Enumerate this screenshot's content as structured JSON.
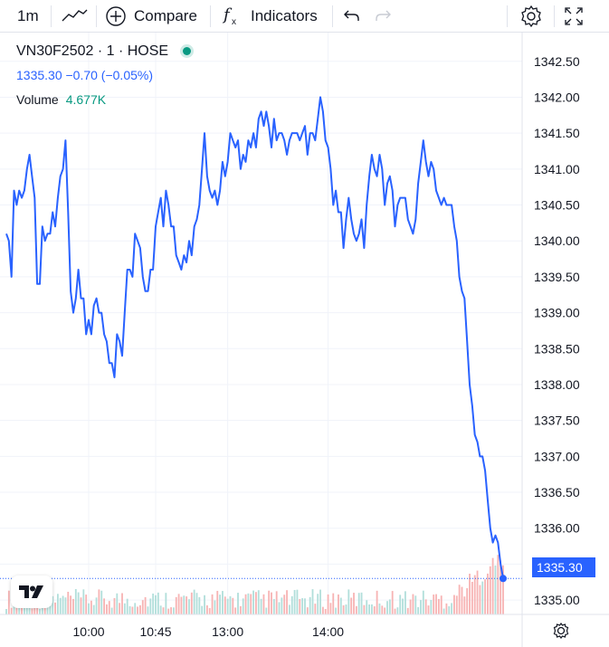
{
  "toolbar": {
    "interval": "1m",
    "compare_label": "Compare",
    "indicators_label": "Indicators",
    "icons": [
      "line-chart-icon",
      "plus-circle-icon",
      "fx-icon",
      "undo-icon",
      "redo-icon",
      "settings-icon",
      "fullscreen-icon"
    ]
  },
  "legend": {
    "symbol": "VN30F2502 · 1 · HOSE",
    "ohlc": "1335.30  −0.70 (−0.05%)",
    "volume_label": "Volume",
    "volume_value": "4.677K"
  },
  "colors": {
    "line": "#2962ff",
    "volume_up": "#b2dfdb",
    "volume_down": "#f7b4b4",
    "status_dot": "#089981"
  },
  "chart_data": {
    "type": "line",
    "title": "",
    "xlabel": "",
    "ylabel": "",
    "ylim": [
      1334.8,
      1342.9
    ],
    "yticks": [
      1342.5,
      1342.0,
      1341.5,
      1341.0,
      1340.5,
      1340.0,
      1339.5,
      1339.0,
      1338.5,
      1338.0,
      1337.5,
      1337.0,
      1336.5,
      1336.0,
      1335.5,
      1335.0
    ],
    "ytick_labels": [
      "1342.50",
      "1342.00",
      "1341.50",
      "1341.00",
      "1340.50",
      "1340.00",
      "1339.50",
      "1339.00",
      "1338.50",
      "1338.00",
      "1337.50",
      "1337.00",
      "1336.50",
      "1336.00",
      "1335.50",
      "1335.00"
    ],
    "xtick_labels": [
      "10:00",
      "10:45",
      "13:00",
      "14:00"
    ],
    "xtick_index": [
      32,
      58,
      86,
      125
    ],
    "last_price_label": "1335.30",
    "grid": true,
    "series": [
      {
        "values": [
          1340.1,
          1340.0,
          1339.5,
          1340.7,
          1340.5,
          1340.7,
          1340.6,
          1340.7,
          1341.0,
          1341.2,
          1340.9,
          1340.6,
          1339.4,
          1339.4,
          1340.2,
          1340.0,
          1340.1,
          1340.1,
          1340.4,
          1340.2,
          1340.6,
          1340.9,
          1341.0,
          1341.4,
          1340.4,
          1339.3,
          1339.0,
          1339.2,
          1339.6,
          1339.2,
          1339.2,
          1338.7,
          1338.9,
          1338.7,
          1339.1,
          1339.2,
          1339.0,
          1339.0,
          1338.7,
          1338.6,
          1338.3,
          1338.3,
          1338.1,
          1338.7,
          1338.6,
          1338.4,
          1339.0,
          1339.6,
          1339.6,
          1339.5,
          1340.1,
          1340.0,
          1339.9,
          1339.5,
          1339.3,
          1339.3,
          1339.6,
          1339.6,
          1340.2,
          1340.4,
          1340.6,
          1340.2,
          1340.7,
          1340.5,
          1340.2,
          1340.2,
          1339.8,
          1339.7,
          1339.6,
          1339.8,
          1339.7,
          1340.0,
          1339.8,
          1340.2,
          1340.3,
          1340.5,
          1341.0,
          1341.5,
          1340.9,
          1340.7,
          1340.6,
          1340.7,
          1340.5,
          1340.7,
          1341.1,
          1340.9,
          1341.1,
          1341.5,
          1341.4,
          1341.3,
          1341.4,
          1341.0,
          1341.2,
          1341.1,
          1341.4,
          1341.3,
          1341.5,
          1341.3,
          1341.7,
          1341.8,
          1341.6,
          1341.8,
          1341.6,
          1341.3,
          1341.7,
          1341.4,
          1341.5,
          1341.5,
          1341.4,
          1341.2,
          1341.4,
          1341.5,
          1341.5,
          1341.5,
          1341.4,
          1341.5,
          1341.6,
          1341.2,
          1341.5,
          1341.5,
          1341.4,
          1341.7,
          1342.0,
          1341.8,
          1341.4,
          1341.3,
          1341.0,
          1340.5,
          1340.7,
          1340.4,
          1340.4,
          1339.9,
          1340.3,
          1340.6,
          1340.3,
          1340.1,
          1340.0,
          1340.1,
          1340.3,
          1339.9,
          1340.5,
          1340.9,
          1341.2,
          1341.0,
          1340.9,
          1341.2,
          1341.0,
          1340.5,
          1340.8,
          1340.9,
          1340.7,
          1340.2,
          1340.5,
          1340.6,
          1340.6,
          1340.6,
          1340.3,
          1340.2,
          1340.1,
          1340.3,
          1340.8,
          1341.1,
          1341.4,
          1341.1,
          1340.9,
          1341.1,
          1341.0,
          1340.7,
          1340.6,
          1340.5,
          1340.6,
          1340.5,
          1340.5,
          1340.5,
          1340.2,
          1340.0,
          1339.5,
          1339.3,
          1339.2,
          1338.6,
          1338.0,
          1337.7,
          1337.3,
          1337.2,
          1337.0,
          1337.0,
          1336.8,
          1336.4,
          1336.0,
          1335.8,
          1335.9,
          1335.8,
          1335.5,
          1335.3
        ]
      }
    ]
  }
}
